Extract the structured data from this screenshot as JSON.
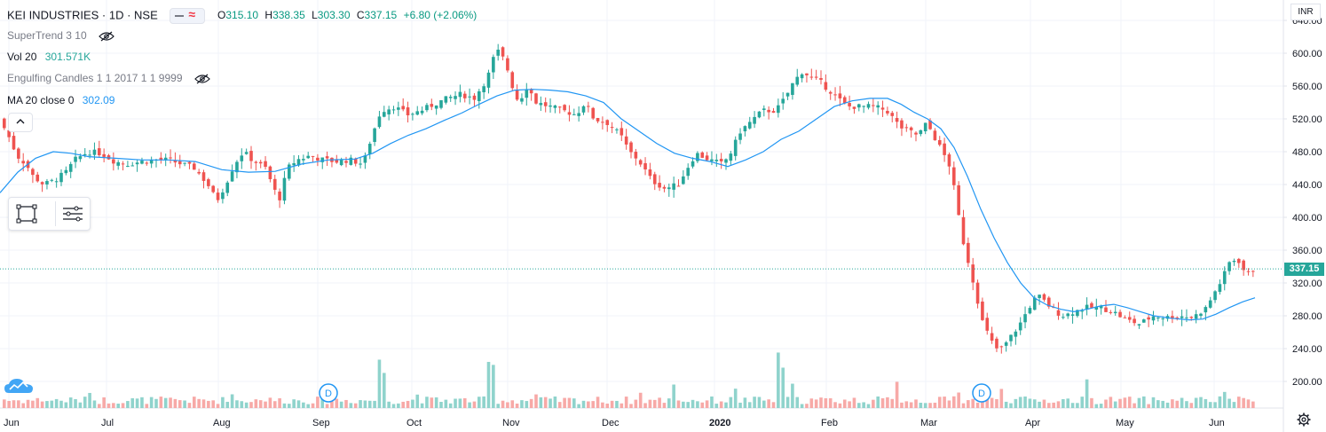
{
  "header": {
    "symbol": "KEI INDUSTRIES · 1D · NSE",
    "open_label": "O",
    "open": "315.10",
    "high_label": "H",
    "high": "338.35",
    "low_label": "L",
    "low": "303.30",
    "close_label": "C",
    "close": "337.15",
    "change": "+6.80 (+2.06%)"
  },
  "indicators": [
    {
      "name": "SuperTrend 3 10",
      "value": ""
    },
    {
      "name": "Vol 20",
      "value": "301.571K"
    },
    {
      "name": "Engulfing Candles 1 1 2017 1 1 9999",
      "value": ""
    },
    {
      "name": "MA 20 close 0",
      "value": "302.09"
    }
  ],
  "price_axis": {
    "currency": "INR",
    "current_price": "337.15",
    "ticks": [
      "640.00",
      "600.00",
      "560.00",
      "520.00",
      "480.00",
      "440.00",
      "400.00",
      "360.00",
      "320.00",
      "280.00",
      "240.00",
      "200.00"
    ]
  },
  "time_axis": {
    "labels": [
      "Jun",
      "Jul",
      "Aug",
      "Sep",
      "Oct",
      "Nov",
      "Dec",
      "2020",
      "Feb",
      "Mar",
      "Apr",
      "May",
      "Jun"
    ]
  },
  "events": [
    {
      "label": "D"
    },
    {
      "label": "D"
    }
  ],
  "colors": {
    "up": "#26a69a",
    "down": "#ef5350",
    "vol_up": "#8fd3cc",
    "vol_down": "#f7a9a7",
    "ma": "#2196f3",
    "grid": "#f0f3fa",
    "accent_label": "#26a69a"
  },
  "icons": {
    "eye_hidden": "eye-crossed-icon",
    "collapse": "chevron-up-icon",
    "rectangle_tool": "rectangle-tool-icon",
    "list_tool": "object-tree-icon",
    "logo": "tradingview-cloud-icon",
    "settings": "gear-icon"
  },
  "chart_data": {
    "type": "candlestick",
    "title": "KEI INDUSTRIES · 1D · NSE",
    "ylim": [
      180,
      650
    ],
    "y_ticks": [
      200,
      240,
      280,
      320,
      360,
      400,
      440,
      480,
      520,
      560,
      600,
      640
    ],
    "x_labels": [
      "Jun",
      "Jul",
      "Aug",
      "Sep",
      "Oct",
      "Nov",
      "Dec",
      "2020",
      "Feb",
      "Mar",
      "Apr",
      "May",
      "Jun"
    ],
    "price_path": [
      [
        0,
        520
      ],
      [
        10,
        500
      ],
      [
        20,
        475
      ],
      [
        30,
        465
      ],
      [
        38,
        450
      ],
      [
        50,
        440
      ],
      [
        62,
        445
      ],
      [
        75,
        455
      ],
      [
        85,
        470
      ],
      [
        100,
        480
      ],
      [
        115,
        478
      ],
      [
        130,
        468
      ],
      [
        145,
        465
      ],
      [
        160,
        468
      ],
      [
        175,
        470
      ],
      [
        190,
        470
      ],
      [
        205,
        465
      ],
      [
        220,
        460
      ],
      [
        235,
        440
      ],
      [
        245,
        420
      ],
      [
        255,
        440
      ],
      [
        265,
        465
      ],
      [
        275,
        480
      ],
      [
        285,
        470
      ],
      [
        300,
        460
      ],
      [
        315,
        420
      ],
      [
        325,
        460
      ],
      [
        335,
        470
      ],
      [
        350,
        475
      ],
      [
        365,
        470
      ],
      [
        380,
        468
      ],
      [
        395,
        470
      ],
      [
        410,
        465
      ],
      [
        420,
        500
      ],
      [
        430,
        530
      ],
      [
        445,
        535
      ],
      [
        460,
        525
      ],
      [
        475,
        530
      ],
      [
        490,
        538
      ],
      [
        505,
        545
      ],
      [
        520,
        550
      ],
      [
        535,
        545
      ],
      [
        550,
        570
      ],
      [
        560,
        605
      ],
      [
        570,
        590
      ],
      [
        578,
        560
      ],
      [
        585,
        540
      ],
      [
        595,
        560
      ],
      [
        605,
        540
      ],
      [
        620,
        535
      ],
      [
        635,
        530
      ],
      [
        650,
        525
      ],
      [
        660,
        540
      ],
      [
        670,
        520
      ],
      [
        685,
        515
      ],
      [
        700,
        500
      ],
      [
        710,
        480
      ],
      [
        720,
        470
      ],
      [
        735,
        445
      ],
      [
        750,
        435
      ],
      [
        765,
        440
      ],
      [
        775,
        460
      ],
      [
        785,
        478
      ],
      [
        800,
        470
      ],
      [
        815,
        465
      ],
      [
        825,
        480
      ],
      [
        835,
        505
      ],
      [
        850,
        520
      ],
      [
        860,
        530
      ],
      [
        875,
        530
      ],
      [
        885,
        545
      ],
      [
        895,
        565
      ],
      [
        905,
        578
      ],
      [
        915,
        570
      ],
      [
        925,
        565
      ],
      [
        935,
        555
      ],
      [
        945,
        545
      ],
      [
        955,
        535
      ],
      [
        970,
        535
      ],
      [
        985,
        535
      ],
      [
        1000,
        530
      ],
      [
        1015,
        510
      ],
      [
        1025,
        505
      ],
      [
        1035,
        500
      ],
      [
        1045,
        515
      ],
      [
        1055,
        495
      ],
      [
        1065,
        475
      ],
      [
        1072,
        460
      ],
      [
        1078,
        420
      ],
      [
        1085,
        375
      ],
      [
        1092,
        345
      ],
      [
        1100,
        310
      ],
      [
        1107,
        275
      ],
      [
        1115,
        255
      ],
      [
        1122,
        240
      ],
      [
        1130,
        240
      ],
      [
        1140,
        255
      ],
      [
        1150,
        270
      ],
      [
        1160,
        290
      ],
      [
        1170,
        305
      ],
      [
        1180,
        295
      ],
      [
        1190,
        285
      ],
      [
        1200,
        280
      ],
      [
        1210,
        285
      ],
      [
        1225,
        290
      ],
      [
        1240,
        290
      ],
      [
        1255,
        285
      ],
      [
        1270,
        275
      ],
      [
        1285,
        270
      ],
      [
        1300,
        280
      ],
      [
        1315,
        278
      ],
      [
        1330,
        280
      ],
      [
        1345,
        278
      ],
      [
        1360,
        290
      ],
      [
        1370,
        310
      ],
      [
        1378,
        325
      ],
      [
        1386,
        345
      ],
      [
        1395,
        350
      ],
      [
        1405,
        330
      ],
      [
        1414,
        337
      ]
    ],
    "ma_path": [
      [
        0,
        430
      ],
      [
        20,
        455
      ],
      [
        40,
        472
      ],
      [
        60,
        480
      ],
      [
        80,
        478
      ],
      [
        100,
        474
      ],
      [
        130,
        472
      ],
      [
        160,
        470
      ],
      [
        190,
        470
      ],
      [
        220,
        468
      ],
      [
        250,
        458
      ],
      [
        280,
        455
      ],
      [
        310,
        456
      ],
      [
        340,
        465
      ],
      [
        370,
        470
      ],
      [
        400,
        471
      ],
      [
        420,
        478
      ],
      [
        440,
        490
      ],
      [
        460,
        500
      ],
      [
        480,
        508
      ],
      [
        500,
        518
      ],
      [
        520,
        527
      ],
      [
        540,
        538
      ],
      [
        560,
        548
      ],
      [
        580,
        555
      ],
      [
        600,
        556
      ],
      [
        620,
        555
      ],
      [
        640,
        553
      ],
      [
        660,
        548
      ],
      [
        680,
        540
      ],
      [
        700,
        520
      ],
      [
        720,
        505
      ],
      [
        740,
        490
      ],
      [
        760,
        478
      ],
      [
        780,
        472
      ],
      [
        800,
        468
      ],
      [
        820,
        462
      ],
      [
        840,
        470
      ],
      [
        860,
        480
      ],
      [
        880,
        495
      ],
      [
        900,
        505
      ],
      [
        920,
        520
      ],
      [
        940,
        535
      ],
      [
        960,
        542
      ],
      [
        980,
        545
      ],
      [
        1000,
        545
      ],
      [
        1015,
        538
      ],
      [
        1030,
        528
      ],
      [
        1045,
        520
      ],
      [
        1060,
        508
      ],
      [
        1075,
        485
      ],
      [
        1090,
        450
      ],
      [
        1105,
        410
      ],
      [
        1120,
        375
      ],
      [
        1135,
        345
      ],
      [
        1150,
        320
      ],
      [
        1165,
        302
      ],
      [
        1180,
        293
      ],
      [
        1195,
        288
      ],
      [
        1210,
        285
      ],
      [
        1225,
        288
      ],
      [
        1240,
        292
      ],
      [
        1255,
        294
      ],
      [
        1270,
        290
      ],
      [
        1285,
        285
      ],
      [
        1300,
        280
      ],
      [
        1320,
        277
      ],
      [
        1340,
        275
      ],
      [
        1355,
        276
      ],
      [
        1370,
        282
      ],
      [
        1385,
        290
      ],
      [
        1400,
        297
      ],
      [
        1414,
        302
      ]
    ],
    "volume_ylim": [
      0,
      1
    ],
    "volume_spikes": [
      [
        0,
        0.22
      ],
      [
        48,
        0.12
      ],
      [
        100,
        0.18
      ],
      [
        200,
        0.1
      ],
      [
        258,
        0.22
      ],
      [
        290,
        0.13
      ],
      [
        425,
        0.57
      ],
      [
        430,
        0.45
      ],
      [
        470,
        0.2
      ],
      [
        548,
        0.55
      ],
      [
        553,
        0.56
      ],
      [
        600,
        0.25
      ],
      [
        720,
        0.16
      ],
      [
        756,
        0.33
      ],
      [
        825,
        0.32
      ],
      [
        874,
        0.72
      ],
      [
        880,
        0.45
      ],
      [
        890,
        0.32
      ],
      [
        1008,
        0.32
      ],
      [
        1076,
        0.3
      ],
      [
        1128,
        0.28
      ],
      [
        1222,
        0.35
      ],
      [
        1300,
        0.13
      ],
      [
        1380,
        0.28
      ],
      [
        1415,
        0.18
      ]
    ],
    "current_price": 337.15,
    "ma_value": 302.09,
    "volume_value": "301.571K"
  }
}
